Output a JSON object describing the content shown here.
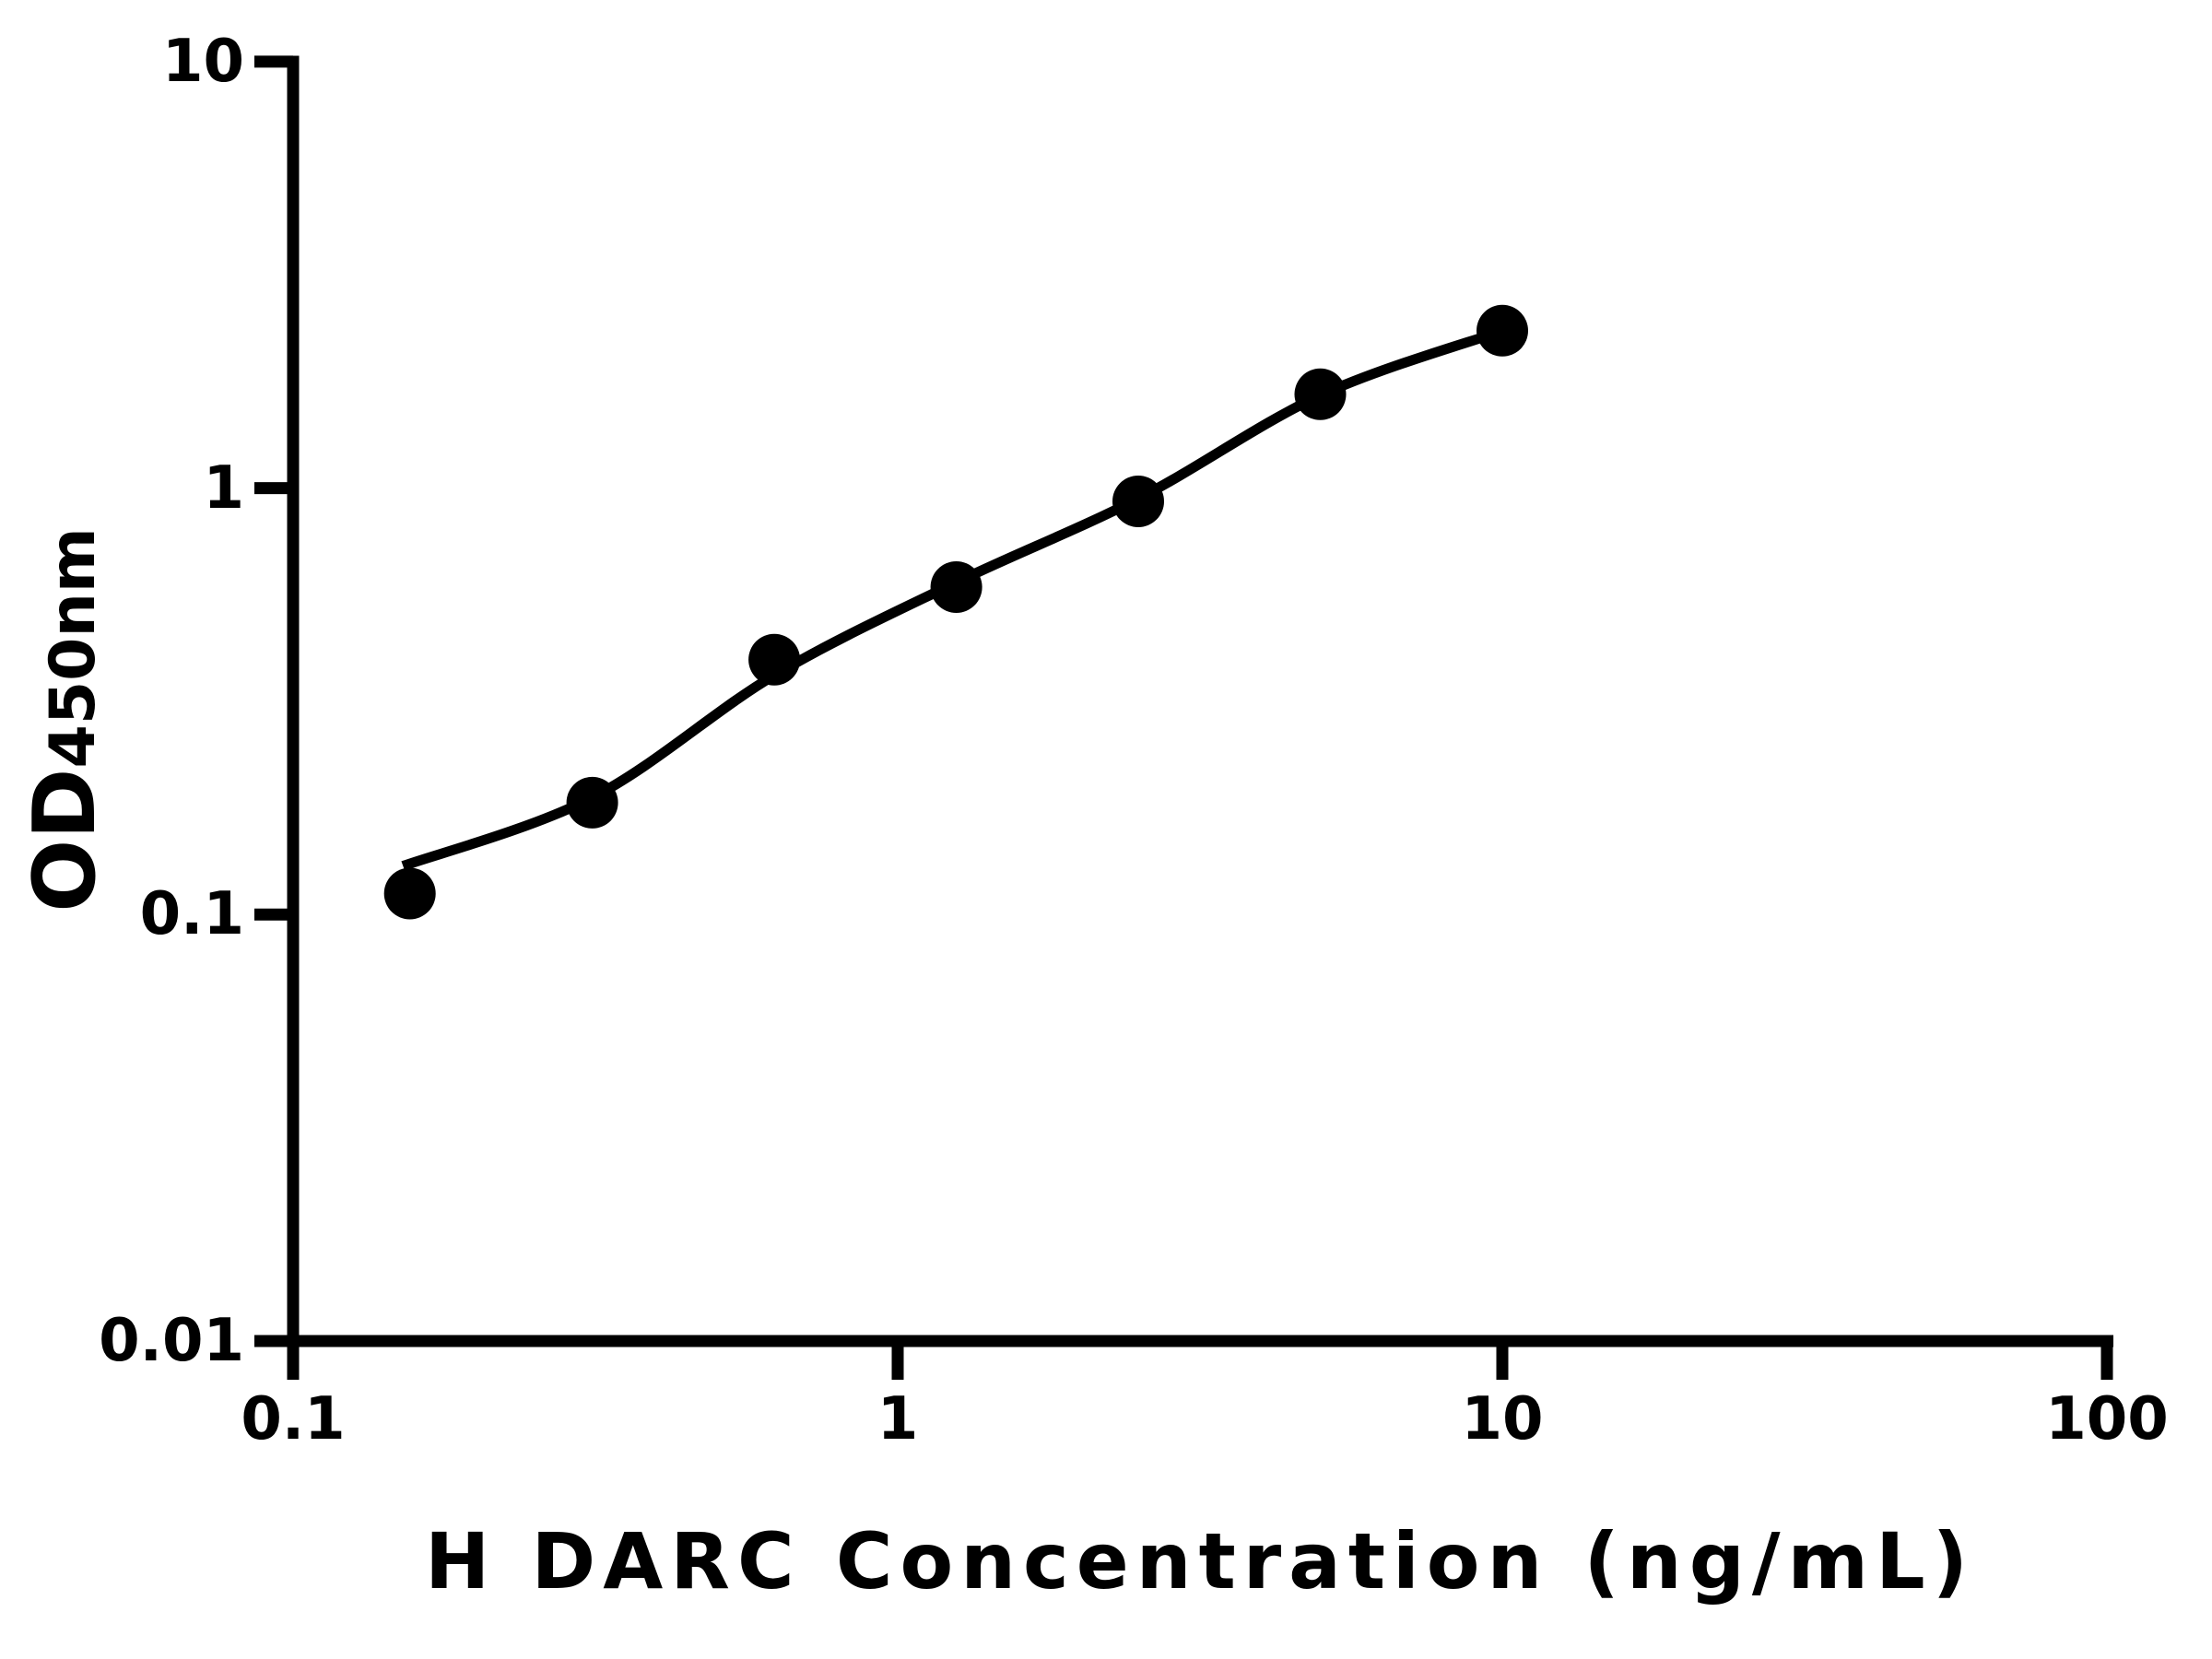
{
  "chart_data": {
    "type": "scatter",
    "title": "",
    "xlabel": "H DARC Concentration (ng/mL)",
    "ylabel": "OD",
    "ylabel_sub": "450nm",
    "x_scale": "log",
    "y_scale": "log",
    "xlim": [
      0.1,
      100
    ],
    "ylim": [
      0.01,
      10
    ],
    "grid": false,
    "legend": false,
    "background_color": "#ffffff",
    "axis_color": "#000000",
    "x_ticks": [
      {
        "value": 0.1,
        "label": "0.1"
      },
      {
        "value": 1,
        "label": "1"
      },
      {
        "value": 10,
        "label": "10"
      },
      {
        "value": 100,
        "label": "100"
      }
    ],
    "y_ticks": [
      {
        "value": 10,
        "label": "10"
      },
      {
        "value": 1,
        "label": "1"
      },
      {
        "value": 0.1,
        "label": "0.1"
      },
      {
        "value": 0.01,
        "label": "0.01"
      }
    ],
    "series": [
      {
        "name": "fitted-curve",
        "type": "line",
        "color": "#000000",
        "x": [
          0.152,
          0.3125,
          0.625,
          1.25,
          2.5,
          5,
          10
        ],
        "y": [
          0.13,
          0.188,
          0.364,
          0.601,
          0.945,
          1.65,
          2.337
        ]
      },
      {
        "name": "standard-data-points",
        "type": "scatter",
        "marker": "circle",
        "color": "#000000",
        "x": [
          0.156,
          0.3125,
          0.625,
          1.25,
          2.5,
          5,
          10
        ],
        "y": [
          0.112,
          0.183,
          0.396,
          0.586,
          0.931,
          1.66,
          2.34
        ]
      }
    ]
  }
}
